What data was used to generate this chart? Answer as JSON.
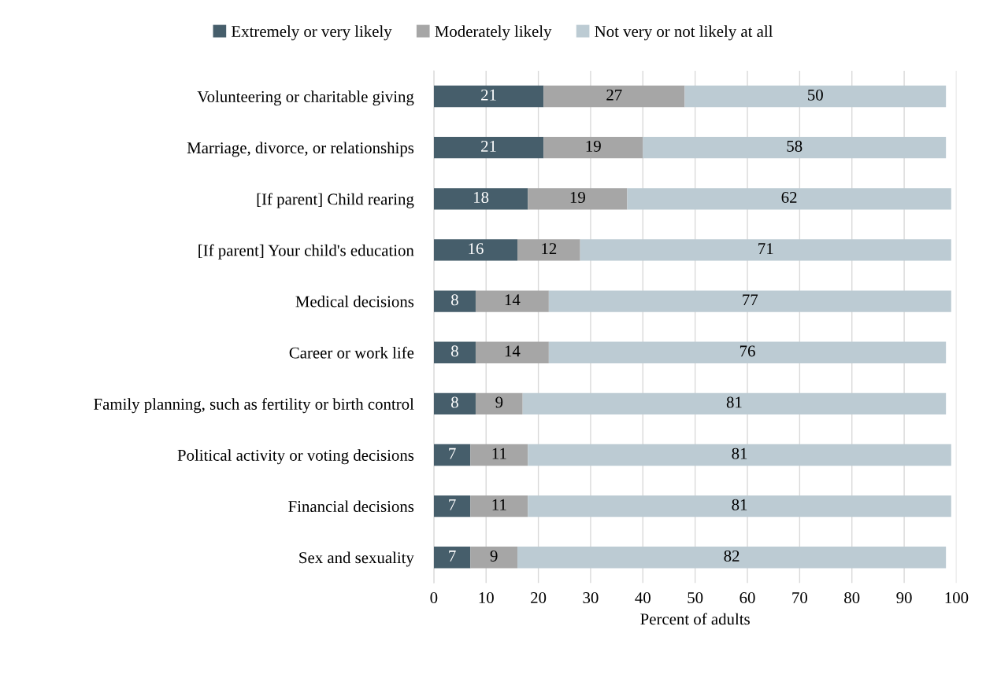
{
  "chart_data": {
    "type": "bar",
    "orientation": "horizontal",
    "stacked": true,
    "xlabel": "Percent of adults",
    "categories": [
      "Volunteering or charitable giving",
      "Marriage, divorce, or relationships",
      "[If parent] Child rearing",
      "[If parent] Your child's education",
      "Medical decisions",
      "Career or work life",
      "Family planning, such as fertility or birth control",
      "Political activity or voting decisions",
      "Financial decisions",
      "Sex and sexuality"
    ],
    "series": [
      {
        "name": "Extremely or very likely",
        "color": "#465e6b",
        "values": [
          21,
          21,
          18,
          16,
          8,
          8,
          8,
          7,
          7,
          7
        ]
      },
      {
        "name": "Moderately likely",
        "color": "#a6a6a6",
        "values": [
          27,
          19,
          19,
          12,
          14,
          14,
          9,
          11,
          11,
          9
        ]
      },
      {
        "name": "Not very or not likely at all",
        "color": "#bccbd3",
        "values": [
          50,
          58,
          62,
          71,
          77,
          76,
          81,
          81,
          81,
          82
        ]
      }
    ],
    "xlim": [
      0,
      100
    ],
    "xticks": [
      0,
      10,
      20,
      30,
      40,
      50,
      60,
      70,
      80,
      90,
      100
    ],
    "grid": "x",
    "legend": "top",
    "data_labels": true
  }
}
